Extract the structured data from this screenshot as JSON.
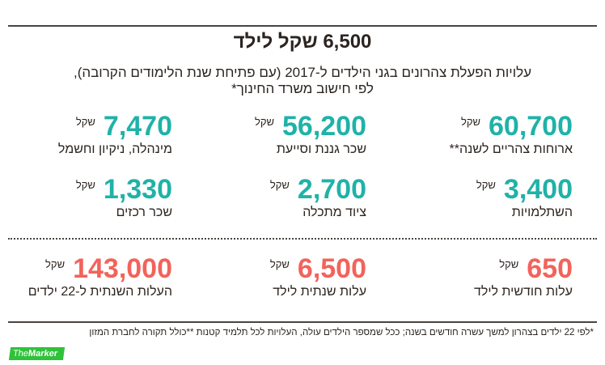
{
  "title": "6,500 שקל לילד",
  "subtitle_line1": "עלויות הפעלת צהרונים בגני הילדים ל-2017 (עם פתיחת שנת הלימודים הקרובה),",
  "subtitle_line2": "לפי חישוב משרד החינוך*",
  "currency": "שקל",
  "colors": {
    "teal": "#1fb2a8",
    "red": "#f2635b"
  },
  "rows": [
    [
      {
        "value": "60,700",
        "label": "ארוחות צהריים לשנה**"
      },
      {
        "value": "56,200",
        "label": "שכר גננת וסייעת"
      },
      {
        "value": "7,470",
        "label": "מינהלה, ניקיון וחשמל"
      }
    ],
    [
      {
        "value": "3,400",
        "label": "השתלמויות"
      },
      {
        "value": "2,700",
        "label": "ציוד מתכלה"
      },
      {
        "value": "1,330",
        "label": "שכר רכזים"
      }
    ],
    [
      {
        "value": "650",
        "label": "עלות חודשית לילד"
      },
      {
        "value": "6,500",
        "label": "עלות שנתית לילד"
      },
      {
        "value": "143,000",
        "label": "העלות השנתית ל-22 ילדים"
      }
    ]
  ],
  "footnote": "*לפי 22 ילדים בצהרון למשך עשרה חודשים בשנה; ככל שמספר הילדים עולה, העלויות לכל תלמיד קטנות **כולל תקורה לחברת המזון",
  "logo": {
    "the": "The",
    "marker": "Marker"
  }
}
